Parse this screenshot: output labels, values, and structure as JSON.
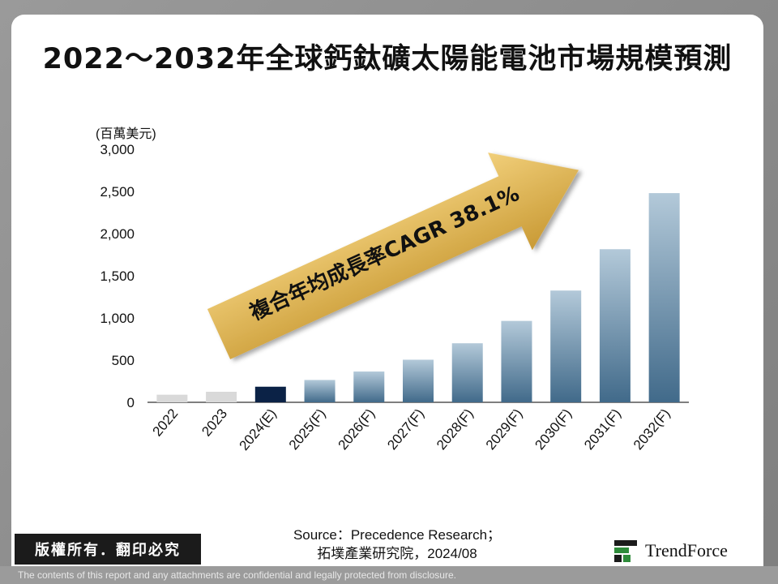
{
  "title": "2022～2032年全球鈣鈦礦太陽能電池市場規模預測",
  "chart_data": {
    "type": "bar",
    "unit_label": "(百萬美元)",
    "ylim": [
      0,
      3000
    ],
    "yticks": [
      "3,000",
      "2,500",
      "2,000",
      "1,500",
      "1,000",
      "500",
      "0"
    ],
    "ytick_values": [
      3000,
      2500,
      2000,
      1500,
      1000,
      500,
      0
    ],
    "categories": [
      "2022",
      "2023",
      "2024(E)",
      "2025(F)",
      "2026(F)",
      "2027(F)",
      "2028(F)",
      "2029(F)",
      "2030(F)",
      "2031(F)",
      "2032(F)"
    ],
    "values": [
      90,
      125,
      185,
      265,
      365,
      505,
      700,
      965,
      1325,
      1815,
      2480
    ],
    "bar_kinds": [
      "actual",
      "actual",
      "estimate",
      "forecast",
      "forecast",
      "forecast",
      "forecast",
      "forecast",
      "forecast",
      "forecast",
      "forecast"
    ],
    "annotation": "複合年均成長率CAGR 38.1%",
    "colors": {
      "actual": "#d9d9d9",
      "estimate": "#0b2246",
      "forecast_top": "#b3c9d9",
      "forecast_bottom": "#416a8a",
      "arrow_top": "#f1cf7a",
      "arrow_bottom": "#c99a35",
      "axis": "#333333"
    }
  },
  "footer": {
    "source_line1": "Source：Precedence Research；",
    "source_line2": "拓墣產業研究院，2024/08",
    "copyright": "版權所有．翻印必究",
    "disclaimer": "The contents of this report and any attachments are confidential and legally protected from disclosure.",
    "logo_text": "TrendForce",
    "logo_icon": "trendforce-logo-icon"
  }
}
